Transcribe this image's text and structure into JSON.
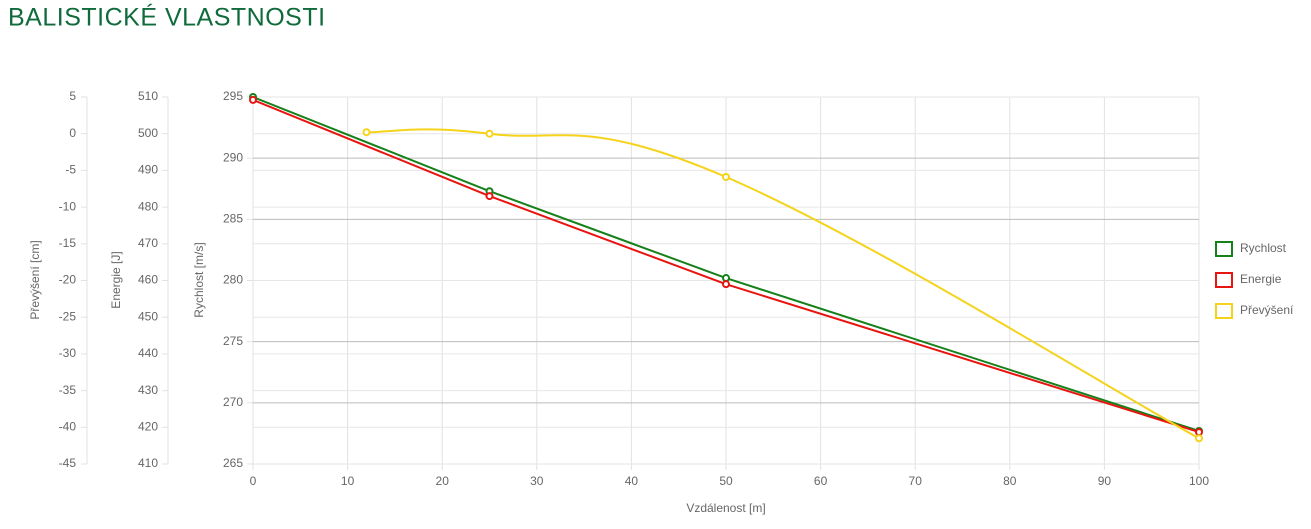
{
  "chart_data": {
    "type": "line",
    "title": "BALISTICKÉ VLASTNOSTI",
    "xlabel": "Vzdálenost [m]",
    "xlim": [
      0,
      100
    ],
    "xticks": [
      0,
      10,
      20,
      30,
      40,
      50,
      60,
      70,
      80,
      90,
      100
    ],
    "ylabel": "Rychlost [m/s]",
    "ylim": [
      265,
      295
    ],
    "yticks": [
      265,
      270,
      275,
      280,
      285,
      290,
      295
    ],
    "y2label": "Energie [J]",
    "y2lim": [
      410,
      510
    ],
    "y2ticks": [
      410,
      420,
      430,
      440,
      450,
      460,
      470,
      480,
      490,
      500,
      510
    ],
    "y3label": "Převýšení [cm]",
    "y3lim": [
      -45,
      5
    ],
    "y3ticks": [
      -45,
      -40,
      -35,
      -30,
      -25,
      -20,
      -15,
      -10,
      -5,
      0,
      5
    ],
    "grid": true,
    "legend": "right",
    "series": [
      {
        "name": "Rychlost",
        "color": "#16801a",
        "axis": "y",
        "smooth": false,
        "x": [
          0,
          25,
          50,
          100
        ],
        "values": [
          295,
          287.3,
          280.2,
          267.7
        ]
      },
      {
        "name": "Energie",
        "color": "#e8140f",
        "axis": "y2",
        "smooth": false,
        "x": [
          0,
          25,
          50,
          100
        ],
        "values": [
          509.2,
          483,
          459,
          418.7
        ]
      },
      {
        "name": "Převýšení",
        "color": "#f5d31a",
        "axis": "y3",
        "smooth": true,
        "x": [
          12,
          25,
          50,
          100
        ],
        "values": [
          0.2,
          0,
          -5.9,
          -41.5
        ]
      }
    ]
  }
}
